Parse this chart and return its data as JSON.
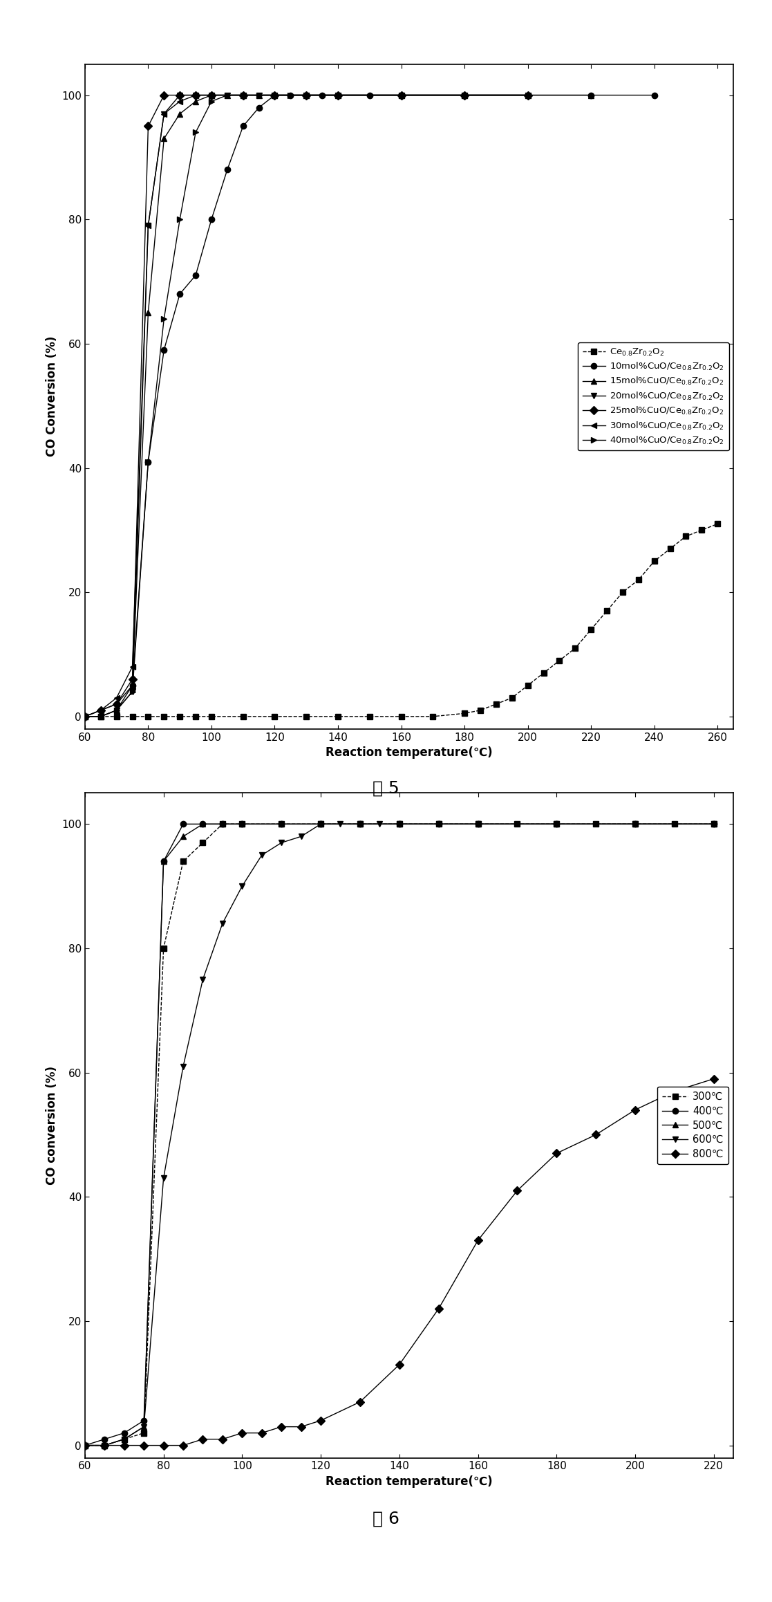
{
  "fig5": {
    "title": "图 5",
    "xlabel": "Reaction temperature(℃)",
    "ylabel": "CO Conversion (%)",
    "xlim": [
      60,
      265
    ],
    "ylim": [
      -2,
      105
    ],
    "xticks": [
      60,
      80,
      100,
      120,
      140,
      160,
      180,
      200,
      220,
      240,
      260
    ],
    "yticks": [
      0,
      20,
      40,
      60,
      80,
      100
    ],
    "series": [
      {
        "label": "Ce$_{0.8}$Zr$_{0.2}$O$_2$",
        "marker": "s",
        "linestyle": "--",
        "x": [
          60,
          65,
          70,
          75,
          80,
          85,
          90,
          95,
          100,
          110,
          120,
          130,
          140,
          150,
          160,
          170,
          180,
          185,
          190,
          195,
          200,
          205,
          210,
          215,
          220,
          225,
          230,
          235,
          240,
          245,
          250,
          255,
          260
        ],
        "y": [
          0,
          0,
          0,
          0,
          0,
          0,
          0,
          0,
          0,
          0,
          0,
          0,
          0,
          0,
          0,
          0,
          0.5,
          1,
          2,
          3,
          5,
          7,
          9,
          11,
          14,
          17,
          20,
          22,
          25,
          27,
          29,
          30,
          31
        ]
      },
      {
        "label": "10mol%CuO/Ce$_{0.8}$Zr$_{0.2}$O$_2$",
        "marker": "o",
        "linestyle": "-",
        "x": [
          60,
          65,
          70,
          75,
          80,
          85,
          90,
          95,
          100,
          105,
          110,
          115,
          120,
          125,
          130,
          135,
          140,
          150,
          160,
          180,
          200,
          220,
          240
        ],
        "y": [
          0,
          1,
          2,
          5,
          41,
          59,
          68,
          71,
          80,
          88,
          95,
          98,
          100,
          100,
          100,
          100,
          100,
          100,
          100,
          100,
          100,
          100,
          100
        ]
      },
      {
        "label": "15mol%CuO/Ce$_{0.8}$Zr$_{0.2}$O$_2$",
        "marker": "^",
        "linestyle": "-",
        "x": [
          60,
          65,
          70,
          75,
          80,
          85,
          90,
          95,
          100,
          105,
          110,
          115,
          120,
          130,
          140,
          160,
          180,
          200,
          220
        ],
        "y": [
          0,
          0,
          1,
          5,
          65,
          93,
          97,
          99,
          100,
          100,
          100,
          100,
          100,
          100,
          100,
          100,
          100,
          100,
          100
        ]
      },
      {
        "label": "20mol%CuO/Ce$_{0.8}$Zr$_{0.2}$O$_2$",
        "marker": "v",
        "linestyle": "-",
        "x": [
          60,
          65,
          70,
          75,
          80,
          85,
          90,
          95,
          100,
          105,
          110,
          115,
          120,
          130,
          140,
          160,
          180,
          200
        ],
        "y": [
          0,
          0,
          1,
          4,
          79,
          97,
          100,
          100,
          100,
          100,
          100,
          100,
          100,
          100,
          100,
          100,
          100,
          100
        ]
      },
      {
        "label": "25mol%CuO/Ce$_{0.8}$Zr$_{0.2}$O$_2$",
        "marker": "D",
        "linestyle": "-",
        "x": [
          60,
          65,
          70,
          75,
          80,
          85,
          90,
          95,
          100,
          110,
          120,
          130,
          140,
          160,
          180,
          200
        ],
        "y": [
          0,
          1,
          2,
          6,
          95,
          100,
          100,
          100,
          100,
          100,
          100,
          100,
          100,
          100,
          100,
          100
        ]
      },
      {
        "label": "30mol%CuO/Ce$_{0.8}$Zr$_{0.2}$O$_2$",
        "marker": "<",
        "linestyle": "-",
        "x": [
          60,
          65,
          70,
          75,
          80,
          85,
          90,
          95,
          100,
          110,
          120,
          130,
          140,
          160,
          180,
          200
        ],
        "y": [
          0,
          1,
          3,
          8,
          79,
          97,
          99,
          100,
          100,
          100,
          100,
          100,
          100,
          100,
          100,
          100
        ]
      },
      {
        "label": "40mol%CuO/Ce$_{0.8}$Zr$_{0.2}$O$_2$",
        "marker": ">",
        "linestyle": "-",
        "x": [
          60,
          65,
          70,
          75,
          80,
          85,
          90,
          95,
          100,
          105,
          110,
          115,
          120,
          125,
          130,
          140,
          160,
          180,
          200
        ],
        "y": [
          0,
          0,
          1,
          4,
          41,
          64,
          80,
          94,
          99,
          100,
          100,
          100,
          100,
          100,
          100,
          100,
          100,
          100,
          100
        ]
      }
    ]
  },
  "fig6": {
    "title": "图 6",
    "xlabel": "Reaction temperature(℃)",
    "ylabel": "CO conversion (%)",
    "xlim": [
      60,
      225
    ],
    "ylim": [
      -2,
      105
    ],
    "xticks": [
      60,
      80,
      100,
      120,
      140,
      160,
      180,
      200,
      220
    ],
    "yticks": [
      0,
      20,
      40,
      60,
      80,
      100
    ],
    "series": [
      {
        "label": "300℃",
        "marker": "s",
        "linestyle": "--",
        "x": [
          60,
          65,
          70,
          75,
          80,
          85,
          90,
          95,
          100,
          110,
          120,
          130,
          140,
          150,
          160,
          170,
          180,
          190,
          200,
          210,
          220
        ],
        "y": [
          0,
          0,
          1,
          2,
          80,
          94,
          97,
          100,
          100,
          100,
          100,
          100,
          100,
          100,
          100,
          100,
          100,
          100,
          100,
          100,
          100
        ]
      },
      {
        "label": "400℃",
        "marker": "o",
        "linestyle": "-",
        "x": [
          60,
          65,
          70,
          75,
          80,
          85,
          90,
          95,
          100,
          110,
          120,
          130,
          140,
          150,
          160,
          180,
          200,
          220
        ],
        "y": [
          0,
          1,
          2,
          4,
          94,
          100,
          100,
          100,
          100,
          100,
          100,
          100,
          100,
          100,
          100,
          100,
          100,
          100
        ]
      },
      {
        "label": "500℃",
        "marker": "^",
        "linestyle": "-",
        "x": [
          60,
          65,
          70,
          75,
          80,
          85,
          90,
          95,
          100,
          110,
          120,
          130,
          140,
          160,
          180,
          200,
          220
        ],
        "y": [
          0,
          0,
          1,
          3,
          94,
          98,
          100,
          100,
          100,
          100,
          100,
          100,
          100,
          100,
          100,
          100,
          100
        ]
      },
      {
        "label": "600℃",
        "marker": "v",
        "linestyle": "-",
        "x": [
          60,
          65,
          70,
          75,
          80,
          85,
          90,
          95,
          100,
          105,
          110,
          115,
          120,
          125,
          130,
          135,
          140,
          150,
          160,
          180,
          200,
          220
        ],
        "y": [
          0,
          0,
          1,
          3,
          43,
          61,
          75,
          84,
          90,
          95,
          97,
          98,
          100,
          100,
          100,
          100,
          100,
          100,
          100,
          100,
          100,
          100
        ]
      },
      {
        "label": "800℃",
        "marker": "D",
        "linestyle": "-",
        "x": [
          60,
          65,
          70,
          75,
          80,
          85,
          90,
          95,
          100,
          105,
          110,
          115,
          120,
          130,
          140,
          150,
          160,
          170,
          180,
          190,
          200,
          210,
          220
        ],
        "y": [
          0,
          0,
          0,
          0,
          0,
          0,
          1,
          1,
          2,
          2,
          3,
          3,
          4,
          7,
          13,
          22,
          33,
          41,
          47,
          50,
          54,
          57,
          59
        ]
      }
    ]
  }
}
